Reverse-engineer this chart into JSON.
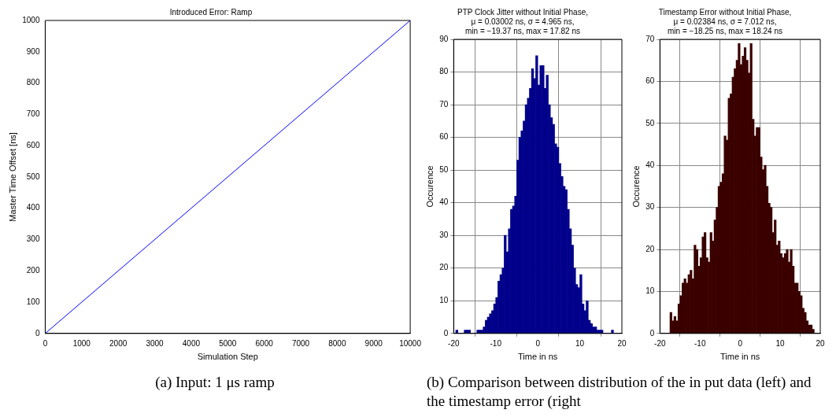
{
  "chart_data": [
    {
      "type": "line",
      "title": "Introduced Error: Ramp",
      "xlabel": "Simulation Step",
      "ylabel": "Master Time Offset [ns]",
      "x": [
        0,
        10000
      ],
      "series": [
        {
          "color": "#0000ff",
          "values": [
            0,
            1000
          ]
        }
      ],
      "xlim": [
        0,
        10000
      ],
      "xticks": [
        0,
        1000,
        2000,
        3000,
        4000,
        5000,
        6000,
        7000,
        8000,
        9000,
        10000
      ],
      "ylim": [
        0,
        1000
      ],
      "yticks": [
        0,
        100,
        200,
        300,
        400,
        500,
        600,
        700,
        800,
        900,
        1000
      ],
      "grid": false,
      "legend": false,
      "marker": "none",
      "annotations": [
        "(a) Input: 1 μs ramp"
      ]
    },
    {
      "type": "histogram",
      "title": "PTP Clock Jitter without Initial Phase,",
      "subtitle": "μ = 0.03002 ns, σ = 4.965 ns,\nmin = −19.37 ns, max = 17.82 ns",
      "xlabel": "Time in ns",
      "ylabel": "Occurence",
      "bins": [
        -20,
        -19.5,
        -19,
        -18.5,
        -18,
        -17.5,
        -17,
        -16.5,
        -16,
        -15.5,
        -15,
        -14.5,
        -14,
        -13.5,
        -13,
        -12.5,
        -12,
        -11.5,
        -11,
        -10.5,
        -10,
        -9.5,
        -9,
        -8.5,
        -8,
        -7.5,
        -7,
        -6.5,
        -6,
        -5.5,
        -5,
        -4.5,
        -4,
        -3.5,
        -3,
        -2.5,
        -2,
        -1.5,
        -1,
        -0.5,
        0,
        0.5,
        1,
        1.5,
        2,
        2.5,
        3,
        3.5,
        4,
        4.5,
        5,
        5.5,
        6,
        6.5,
        7,
        7.5,
        8,
        8.5,
        9,
        9.5,
        10,
        10.5,
        11,
        11.5,
        12,
        12.5,
        13,
        13.5,
        14,
        14.5,
        15,
        15.5,
        16,
        16.5,
        17,
        17.5,
        18,
        18.5,
        19,
        19.5,
        20
      ],
      "values": [
        0,
        1,
        0,
        0,
        0,
        1,
        1,
        1,
        0,
        0,
        0,
        1,
        1,
        1,
        2,
        4,
        5,
        6,
        7,
        9,
        11,
        16,
        18,
        20,
        30,
        25,
        32,
        38,
        39,
        42,
        53,
        60,
        62,
        65,
        70,
        72,
        75,
        81,
        78,
        85,
        76,
        82,
        82,
        75,
        79,
        70,
        66,
        64,
        58,
        57,
        52,
        48,
        45,
        44,
        38,
        32,
        27,
        20,
        15,
        14,
        18,
        9,
        7,
        10,
        4,
        3,
        2,
        2,
        1,
        1,
        1,
        0,
        0,
        0,
        0,
        1,
        0,
        0,
        0,
        0
      ],
      "color": "#00008b",
      "xlim": [
        -20,
        20
      ],
      "xticks": [
        -20,
        -10,
        0,
        10,
        20
      ],
      "ylim": [
        0,
        90
      ],
      "yticks": [
        0,
        10,
        20,
        30,
        40,
        50,
        60,
        70,
        80,
        90
      ],
      "grid": true,
      "legend": false,
      "annotations": [
        "(b) Comparison between distribution of the in put data (left) and the timestamp error (right"
      ]
    },
    {
      "type": "histogram",
      "title": "Timestamp Error without Initial Phase,",
      "subtitle": "μ = 0.02384 ns, σ = 7.012 ns,\nmin = −18.25 ns, max = 18.24 ns",
      "xlabel": "Time in ns",
      "ylabel": "Occurence",
      "bins": [
        -20,
        -19.5,
        -19,
        -18.5,
        -18,
        -17.5,
        -17,
        -16.5,
        -16,
        -15.5,
        -15,
        -14.5,
        -14,
        -13.5,
        -13,
        -12.5,
        -12,
        -11.5,
        -11,
        -10.5,
        -10,
        -9.5,
        -9,
        -8.5,
        -8,
        -7.5,
        -7,
        -6.5,
        -6,
        -5.5,
        -5,
        -4.5,
        -4,
        -3.5,
        -3,
        -2.5,
        -2,
        -1.5,
        -1,
        -0.5,
        0,
        0.5,
        1,
        1.5,
        2,
        2.5,
        3,
        3.5,
        4,
        4.5,
        5,
        5.5,
        6,
        6.5,
        7,
        7.5,
        8,
        8.5,
        9,
        9.5,
        10,
        10.5,
        11,
        11.5,
        12,
        12.5,
        13,
        13.5,
        14,
        14.5,
        15,
        15.5,
        16,
        16.5,
        17,
        17.5,
        18,
        18.5,
        19,
        19.5,
        20
      ],
      "values": [
        0,
        0,
        0,
        0,
        0,
        5,
        3,
        4,
        3,
        7,
        9,
        12,
        13,
        12,
        14,
        15,
        13,
        21,
        20,
        16,
        18,
        23,
        24,
        18,
        17,
        24,
        22,
        27,
        30,
        35,
        36,
        38,
        47,
        46,
        56,
        57,
        61,
        63,
        65,
        69,
        64,
        66,
        68,
        65,
        62,
        69,
        51,
        47,
        49,
        49,
        42,
        39,
        40,
        35,
        31,
        30,
        24,
        27,
        21,
        22,
        19,
        18,
        19,
        20,
        17,
        20,
        16,
        12,
        12,
        10,
        9,
        6,
        5,
        3,
        2,
        2,
        1,
        0,
        0,
        0
      ],
      "color": "#3a0000",
      "xlim": [
        -20,
        20
      ],
      "xticks": [
        -20,
        -10,
        0,
        10,
        20
      ],
      "ylim": [
        0,
        70
      ],
      "yticks": [
        0,
        10,
        20,
        30,
        40,
        50,
        60,
        70
      ],
      "grid": true,
      "legend": false
    }
  ]
}
